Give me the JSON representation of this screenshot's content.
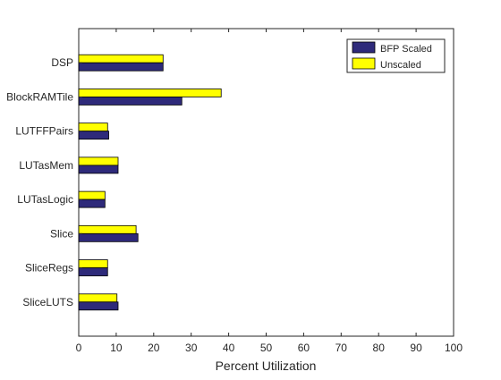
{
  "chart_data": {
    "type": "bar",
    "orientation": "horizontal",
    "title": "",
    "xlabel": "Percent Utilization",
    "ylabel": "",
    "xlim": [
      0,
      100
    ],
    "xticks": [
      0,
      10,
      20,
      30,
      40,
      50,
      60,
      70,
      80,
      90,
      100
    ],
    "categories": [
      "DSP",
      "BlockRAMTile",
      "LUTFFPairs",
      "LUTasMem",
      "LUTasLogic",
      "Slice",
      "SliceRegs",
      "SliceLUTS"
    ],
    "series": [
      {
        "name": "BFP Scaled",
        "color": "#2e2a7a",
        "values": [
          22.5,
          27.5,
          8,
          10.5,
          7,
          15.8,
          7.7,
          10.5
        ]
      },
      {
        "name": "Unscaled",
        "color": "#ffff00",
        "values": [
          22.5,
          38,
          7.7,
          10.5,
          7,
          15.3,
          7.7,
          10.2
        ]
      }
    ],
    "legend_position": "top-right",
    "grid": false
  }
}
